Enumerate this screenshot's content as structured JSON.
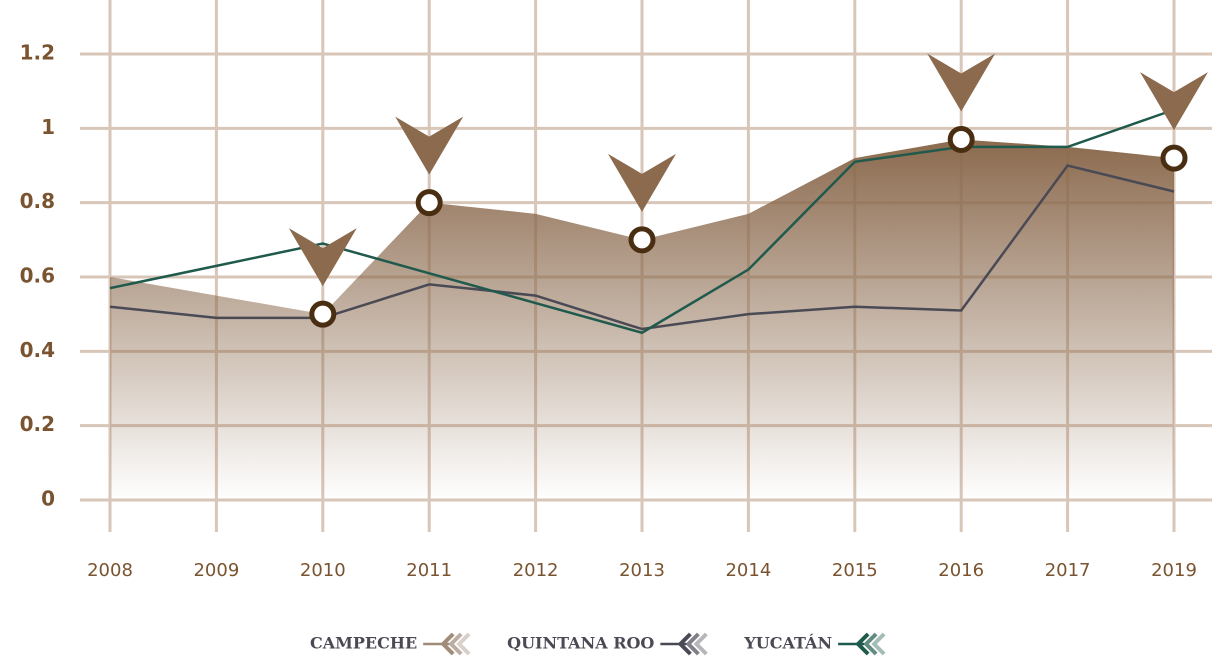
{
  "chart_data": {
    "type": "line",
    "categories": [
      "2008",
      "2009",
      "2010",
      "2011",
      "2012",
      "2013",
      "2014",
      "2015",
      "2016",
      "2017",
      "2019"
    ],
    "series": [
      {
        "name": "CAMPECHE",
        "color": "#a08a78",
        "area": true,
        "values": [
          0.6,
          0.55,
          0.5,
          0.8,
          0.77,
          0.7,
          0.77,
          0.92,
          0.97,
          0.95,
          0.92
        ]
      },
      {
        "name": "QUINTANA ROO",
        "color": "#4a4a55",
        "values": [
          0.52,
          0.49,
          0.49,
          0.58,
          0.55,
          0.46,
          0.5,
          0.52,
          0.51,
          0.9,
          0.83
        ]
      },
      {
        "name": "YUCATÁN",
        "color": "#1f5a4c",
        "values": [
          0.57,
          0.63,
          0.69,
          0.61,
          0.53,
          0.45,
          0.62,
          0.91,
          0.95,
          0.95,
          1.05
        ]
      }
    ],
    "highlight_categories": [
      "2010",
      "2011",
      "2013",
      "2016",
      "2019"
    ],
    "ylim": [
      0,
      1.2
    ],
    "yticks": [
      0,
      0.2,
      0.4,
      0.6,
      0.8,
      1,
      1.2
    ],
    "grid": true
  }
}
